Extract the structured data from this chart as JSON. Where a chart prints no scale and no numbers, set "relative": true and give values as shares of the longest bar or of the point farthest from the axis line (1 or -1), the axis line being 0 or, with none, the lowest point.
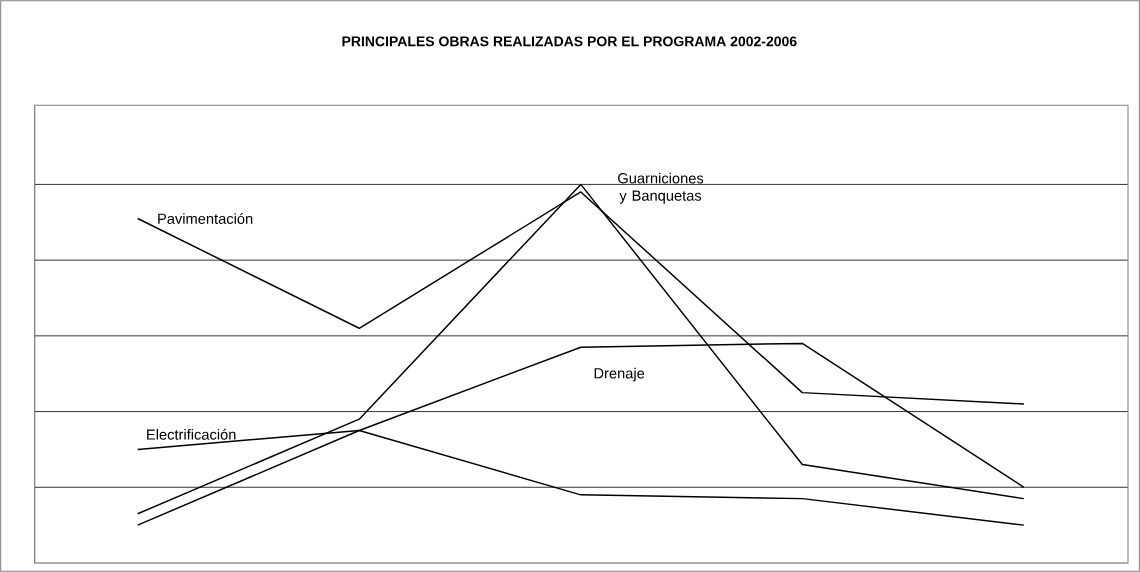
{
  "chart_data": {
    "type": "line",
    "title": "PRINCIPALES OBRAS REALIZADAS POR EL PROGRAMA 2002-2006",
    "relative": true,
    "grid": "y",
    "legend": false,
    "marker": "none",
    "line_style": "solid",
    "categories": [
      null,
      null,
      null,
      null,
      null
    ],
    "series": [
      {
        "name": "Pavimentación",
        "color": "#000000",
        "values": [
          0.91,
          0.62,
          0.98,
          0.45,
          0.42
        ]
      },
      {
        "name": "Guarniciones y Banquetas",
        "color": "#000000",
        "values": [
          0.13,
          0.38,
          1.0,
          0.26,
          0.17
        ]
      },
      {
        "name": "Electrificación",
        "color": "#000000",
        "values": [
          0.3,
          0.35,
          0.18,
          0.17,
          0.1
        ]
      },
      {
        "name": "Drenaje",
        "color": "#000000",
        "values": [
          0.1,
          0.35,
          0.57,
          0.58,
          0.2
        ]
      }
    ]
  }
}
